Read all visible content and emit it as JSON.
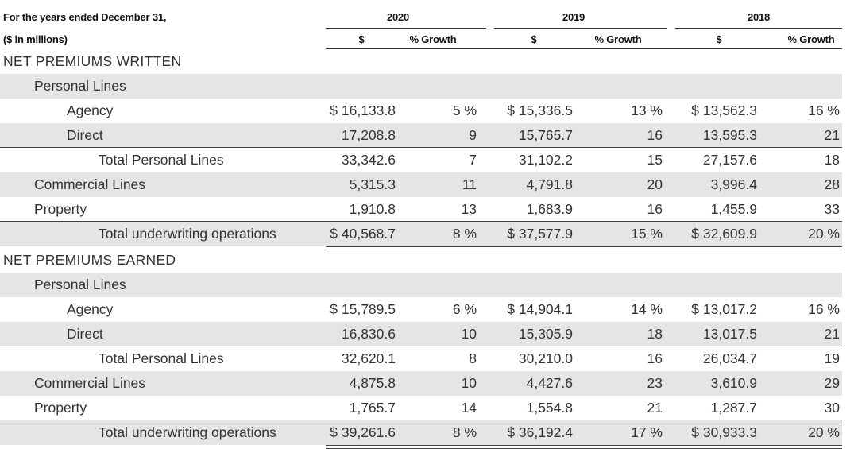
{
  "header": {
    "period_label": "For the years ended December 31,",
    "units_label": "($ in millions)",
    "years": [
      "2020",
      "2019",
      "2018"
    ],
    "col_dollar": "$",
    "col_growth": "% Growth"
  },
  "sections": [
    {
      "title": "NET PREMIUMS WRITTEN",
      "rows": [
        {
          "label": "Personal Lines",
          "indent": 1,
          "values": [
            "",
            "",
            "",
            "",
            "",
            ""
          ]
        },
        {
          "label": "Agency",
          "indent": 2,
          "values": [
            "$ 16,133.8",
            "5 %",
            "$ 15,336.5",
            "13 %",
            "$ 13,562.3",
            "16 %"
          ]
        },
        {
          "label": "Direct",
          "indent": 2,
          "values": [
            "17,208.8",
            "9",
            "15,765.7",
            "16",
            "13,595.3",
            "21"
          ]
        },
        {
          "label": "Total Personal Lines",
          "indent": 3,
          "values": [
            "33,342.6",
            "7",
            "31,102.2",
            "15",
            "27,157.6",
            "18"
          ]
        },
        {
          "label": "Commercial Lines",
          "indent": 1,
          "values": [
            "5,315.3",
            "11",
            "4,791.8",
            "20",
            "3,996.4",
            "28"
          ]
        },
        {
          "label": "Property",
          "indent": 1,
          "values": [
            "1,910.8",
            "13",
            "1,683.9",
            "16",
            "1,455.9",
            "33"
          ]
        },
        {
          "label": "Total underwriting operations",
          "indent": 3,
          "values": [
            "$ 40,568.7",
            "8 %",
            "$ 37,577.9",
            "15 %",
            "$ 32,609.9",
            "20 %"
          ]
        }
      ]
    },
    {
      "title": "NET PREMIUMS EARNED",
      "rows": [
        {
          "label": "Personal Lines",
          "indent": 1,
          "values": [
            "",
            "",
            "",
            "",
            "",
            ""
          ]
        },
        {
          "label": "Agency",
          "indent": 2,
          "values": [
            "$ 15,789.5",
            "6 %",
            "$ 14,904.1",
            "14 %",
            "$ 13,017.2",
            "16 %"
          ]
        },
        {
          "label": "Direct",
          "indent": 2,
          "values": [
            "16,830.6",
            "10",
            "15,305.9",
            "18",
            "13,017.5",
            "21"
          ]
        },
        {
          "label": "Total Personal Lines",
          "indent": 3,
          "values": [
            "32,620.1",
            "8",
            "30,210.0",
            "16",
            "26,034.7",
            "19"
          ]
        },
        {
          "label": "Commercial Lines",
          "indent": 1,
          "values": [
            "4,875.8",
            "10",
            "4,427.6",
            "23",
            "3,610.9",
            "29"
          ]
        },
        {
          "label": "Property",
          "indent": 1,
          "values": [
            "1,765.7",
            "14",
            "1,554.8",
            "21",
            "1,287.7",
            "30"
          ]
        },
        {
          "label": "Total underwriting operations",
          "indent": 3,
          "values": [
            "$ 39,261.6",
            "8 %",
            "$ 36,192.4",
            "17 %",
            "$ 30,933.3",
            "20 %"
          ]
        }
      ]
    }
  ]
}
